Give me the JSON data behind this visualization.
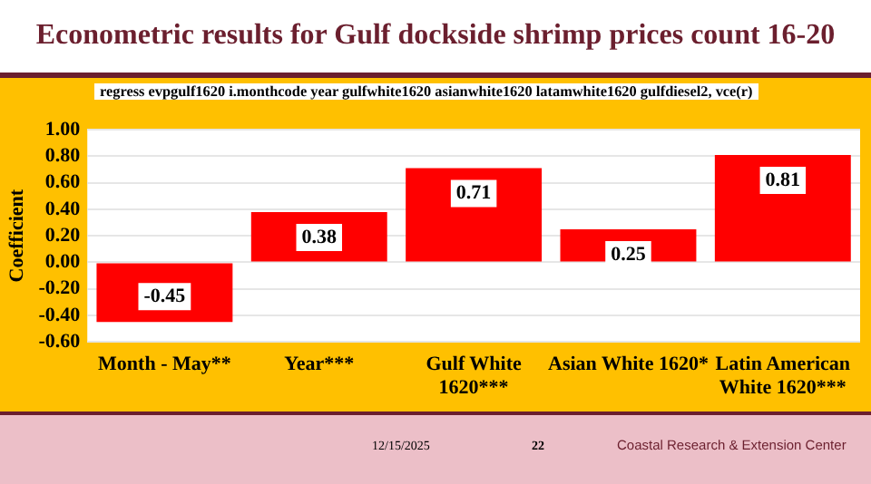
{
  "chart_data": {
    "type": "bar",
    "title": "Econometric results for Gulf dockside shrimp prices count 16-20",
    "subtitle": "regress evpgulf1620 i.monthcode year gulfwhite1620 asianwhite1620 latamwhite1620 gulfdiesel2, vce(r)",
    "ylabel": "Coefficient",
    "categories": [
      "Month - May**",
      "Year***",
      "Gulf White 1620***",
      "Asian White 1620*",
      "Latin American White 1620***"
    ],
    "values": [
      -0.45,
      0.38,
      0.71,
      0.25,
      0.81
    ],
    "color": "#ff0000",
    "ylim": [
      -0.6,
      1.0
    ],
    "yticks": [
      {
        "value": -0.6,
        "label": "-0.60"
      },
      {
        "value": -0.4,
        "label": "-0.40"
      },
      {
        "value": -0.2,
        "label": "-0.20"
      },
      {
        "value": 0,
        "label": "0.00"
      },
      {
        "value": 0.2,
        "label": "0.20"
      },
      {
        "value": 0.4,
        "label": "0.40"
      },
      {
        "value": 0.6,
        "label": "0.60"
      },
      {
        "value": 0.8,
        "label": "0.80"
      },
      {
        "value": 1.0,
        "label": "1.00"
      }
    ],
    "grid": "y",
    "data_labels": true,
    "legend": false,
    "annotations": [
      "12/15/2025",
      "22",
      "Coastal Research & Extension Center"
    ]
  }
}
